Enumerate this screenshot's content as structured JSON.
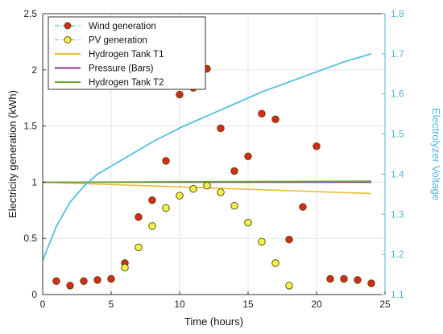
{
  "chart_data": {
    "type": "scatter",
    "title": "",
    "xlabel": "Time (hours)",
    "ylabel": "Electricity generation (kWh)",
    "y2label": "Electrolyzer Voltage",
    "xlim": [
      0,
      25
    ],
    "ylim": [
      0,
      2.5
    ],
    "y2lim": [
      1.1,
      1.8
    ],
    "xticks": [
      "0",
      "5",
      "10",
      "15",
      "20",
      "25"
    ],
    "yticks": [
      "0",
      "0.5",
      "1",
      "1.5",
      "2",
      "2.5"
    ],
    "y2ticks": [
      "1.1",
      "1.2",
      "1.3",
      "1.4",
      "1.5",
      "1.6",
      "1.7",
      "1.8"
    ],
    "grid": true,
    "legend_position": "top-left",
    "legend": [
      "Wind generation",
      "PV generation",
      "Hydrogen Tank T1",
      "Pressure (Bars)",
      "Hydrogen Tank T2"
    ],
    "series": [
      {
        "name": "Wind generation",
        "kind": "scatter",
        "axis": "left",
        "color": "#d42a1c",
        "edge": "#5a4a00",
        "x": [
          1,
          2,
          3,
          4,
          5,
          6,
          7,
          8,
          9,
          10,
          11,
          12,
          13,
          14,
          15,
          16,
          17,
          18,
          19,
          20,
          21,
          22,
          23,
          24
        ],
        "y": [
          0.12,
          0.08,
          0.12,
          0.13,
          0.14,
          0.28,
          0.69,
          0.84,
          1.19,
          1.78,
          1.84,
          2.01,
          1.48,
          1.1,
          1.23,
          1.61,
          1.56,
          0.49,
          0.78,
          1.32,
          0.14,
          0.14,
          0.13,
          0.1
        ]
      },
      {
        "name": "PV generation",
        "kind": "scatter",
        "axis": "left",
        "color": "#f4f148",
        "edge": "#4a4a00",
        "x": [
          6,
          7,
          8,
          9,
          10,
          11,
          12,
          13,
          14,
          15,
          16,
          17,
          18
        ],
        "y": [
          0.24,
          0.42,
          0.61,
          0.77,
          0.88,
          0.94,
          0.97,
          0.91,
          0.79,
          0.64,
          0.47,
          0.28,
          0.08
        ]
      },
      {
        "name": "Hydrogen Tank T1",
        "kind": "line",
        "axis": "left",
        "color": "#e8be35",
        "x": [
          0,
          24
        ],
        "y": [
          1.0,
          0.9
        ]
      },
      {
        "name": "Pressure (Bars)",
        "kind": "line",
        "axis": "left",
        "color": "#8b3a8b",
        "x": [
          0,
          24
        ],
        "y": [
          1.0,
          1.0
        ]
      },
      {
        "name": "Hydrogen Tank T2",
        "kind": "line",
        "axis": "left",
        "color": "#6aa832",
        "x": [
          0,
          24
        ],
        "y": [
          1.0,
          1.01
        ]
      },
      {
        "name": "Electrolyzer Voltage",
        "kind": "line",
        "axis": "right",
        "color": "#4fc1e0",
        "x": [
          0,
          1,
          2,
          3,
          4,
          5,
          6,
          8,
          10,
          12,
          14,
          16,
          18,
          20,
          22,
          24
        ],
        "y": [
          1.185,
          1.27,
          1.33,
          1.37,
          1.4,
          1.42,
          1.44,
          1.48,
          1.515,
          1.545,
          1.575,
          1.605,
          1.63,
          1.655,
          1.68,
          1.7
        ]
      }
    ]
  }
}
